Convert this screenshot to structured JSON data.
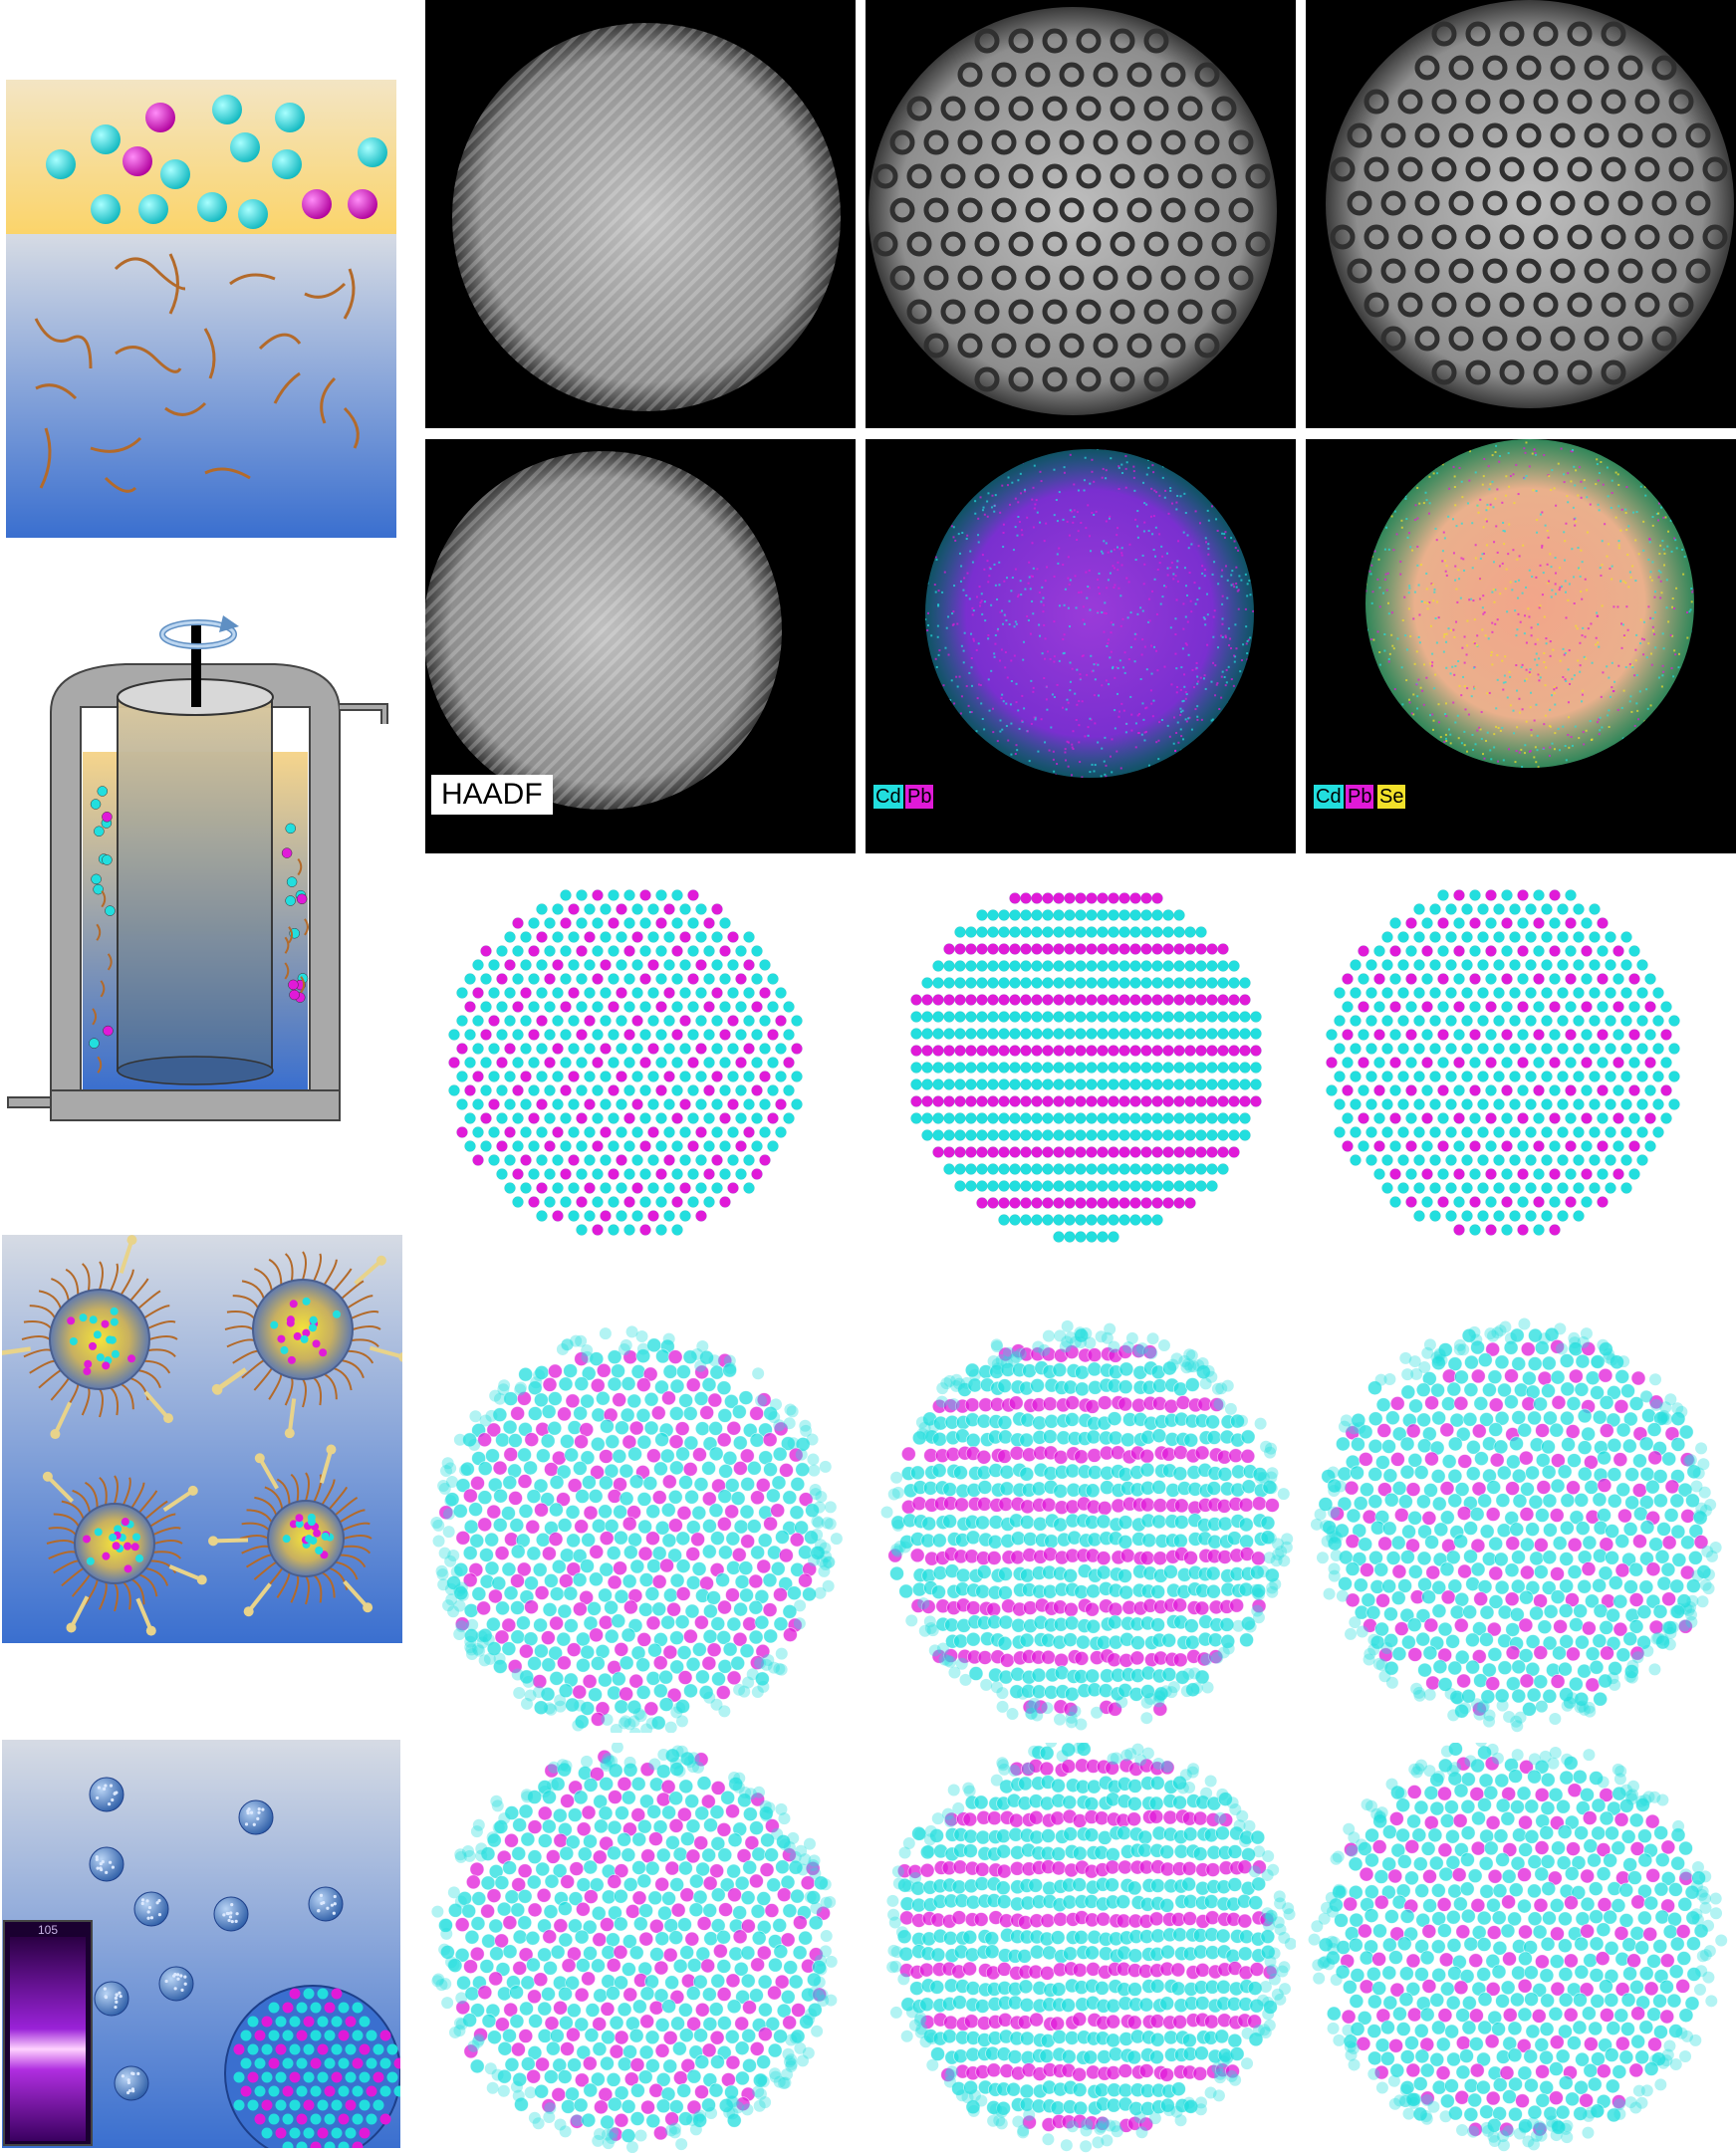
{
  "stem": {
    "haadf_label": "HAADF",
    "map_cd_pb": {
      "labels": [
        "Cd",
        "Pb"
      ]
    },
    "map_cd_pb_se": {
      "labels": [
        "Cd",
        "Pb",
        "Se"
      ]
    }
  },
  "schematic": {
    "bottle_label": "105"
  },
  "colors": {
    "cd": "#22dede",
    "pb": "#e01ad8",
    "se": "#f2e12a",
    "oil": "#fbd46a",
    "water_top": "#d6dbe4",
    "water_bottom": "#3a6fcf",
    "ligand": "#b36a2a",
    "machine_gray": "#a9a9a9"
  },
  "icons": [
    "rotation-arrow-icon"
  ]
}
